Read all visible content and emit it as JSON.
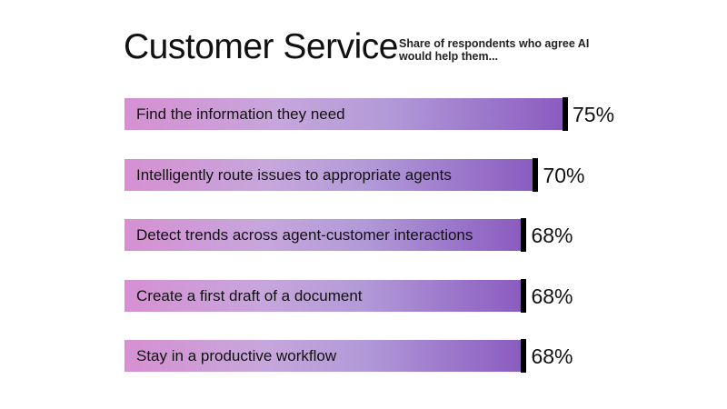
{
  "chart_data": {
    "type": "bar",
    "orientation": "horizontal",
    "title": "Customer Service",
    "subtitle": "Share of respondents who agree AI would help them...",
    "categories": [
      "Find the information they need",
      "Intelligently route issues to appropriate agents",
      "Detect trends across agent-customer interactions",
      "Create a first draft of a document",
      "Stay in a productive workflow"
    ],
    "values": [
      75,
      70,
      68,
      68,
      68
    ],
    "value_labels": [
      "75%",
      "70%",
      "68%",
      "68%",
      "68%"
    ],
    "xlim": [
      0,
      100
    ],
    "grid": false,
    "colors": {
      "gradient_start": "#d690d2",
      "gradient_end": "#8a5cc0",
      "cap": "#000000"
    }
  }
}
